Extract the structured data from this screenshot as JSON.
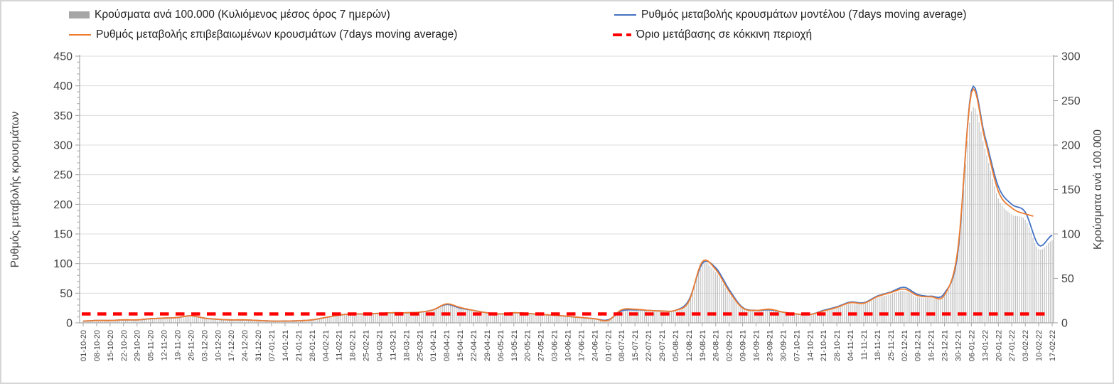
{
  "legend": {
    "items": [
      {
        "id": "cases-bars",
        "label": "Κρούσματα ανά 100.000 (Κυλιόμενος μέσος όρος 7 ημερών)",
        "swatch": "gray-bar",
        "color": "#a6a6a6"
      },
      {
        "id": "model-line",
        "label": "Ρυθμός μεταβολής κρουσμάτων μοντέλου (7days moving average)",
        "swatch": "line",
        "color": "#4472c4"
      },
      {
        "id": "confirmed-line",
        "label": "Ρυθμός μεταβολής επιβεβαιωμένων κρουσμάτων (7days moving average)",
        "swatch": "line",
        "color": "#ed7d31"
      },
      {
        "id": "red-threshold",
        "label": "Όριο μετάβασης σε κόκκινη περιοχή",
        "swatch": "dashed-line",
        "color": "#ff0000"
      }
    ]
  },
  "chart_data": {
    "type": "combo-bar-line-dual-axis",
    "title": "",
    "grid": true,
    "legend_position": "top",
    "left_axis": {
      "title": "Ρυθμός μεταβολής κρουσμάτων",
      "min": 0,
      "max": 450,
      "tick_step": 50,
      "minor_step": 10,
      "ticks": [
        0,
        50,
        100,
        150,
        200,
        250,
        300,
        350,
        400,
        450
      ]
    },
    "right_axis": {
      "title": "Κρούσματα ανά 100.000",
      "min": 0,
      "max": 300,
      "tick_step": 50,
      "ticks": [
        0,
        50,
        100,
        150,
        200,
        250,
        300
      ]
    },
    "categories": [
      "01-10-20",
      "08-10-20",
      "15-10-20",
      "22-10-20",
      "29-10-20",
      "05-11-20",
      "12-11-20",
      "19-11-20",
      "26-11-20",
      "03-12-20",
      "10-12-20",
      "17-12-20",
      "24-12-20",
      "31-12-20",
      "07-01-21",
      "14-01-21",
      "21-01-21",
      "28-01-21",
      "04-02-21",
      "11-02-21",
      "18-02-21",
      "25-02-21",
      "04-03-21",
      "11-03-21",
      "18-03-21",
      "25-03-21",
      "01-04-21",
      "08-04-21",
      "15-04-21",
      "22-04-21",
      "29-04-21",
      "06-05-21",
      "13-05-21",
      "20-05-21",
      "27-05-21",
      "03-06-21",
      "10-06-21",
      "17-06-21",
      "24-06-21",
      "01-07-21",
      "08-07-21",
      "15-07-21",
      "22-07-21",
      "29-07-21",
      "05-08-21",
      "12-08-21",
      "19-08-21",
      "26-08-21",
      "02-09-21",
      "09-09-21",
      "16-09-21",
      "23-09-21",
      "30-09-21",
      "07-10-21",
      "14-10-21",
      "21-10-21",
      "28-10-21",
      "04-11-21",
      "11-11-21",
      "18-11-21",
      "25-11-21",
      "02-12-21",
      "09-12-21",
      "16-12-21",
      "23-12-21",
      "30-12-21",
      "06-01-22",
      "13-01-22",
      "20-01-22",
      "27-01-22",
      "03-02-22",
      "10-02-22",
      "17-02-22"
    ],
    "series": [
      {
        "name": "Κρούσματα ανά 100.000 (Κυλιόμενος μέσος όρος 7 ημερών)",
        "type": "bar",
        "axis": "right",
        "color": "#bebebe",
        "values": [
          2,
          2.5,
          2.5,
          3,
          3,
          4.5,
          5,
          6,
          7.5,
          5,
          4,
          3,
          3,
          2.5,
          2,
          2,
          2.2,
          3,
          5.5,
          8,
          9.5,
          9.5,
          10,
          10.5,
          10.5,
          11,
          14,
          20,
          16.5,
          13,
          10.5,
          9.5,
          10.5,
          10,
          9,
          8,
          7,
          5.5,
          4.5,
          2.5,
          13.5,
          14.5,
          13,
          12.5,
          13,
          23,
          65,
          57,
          33,
          16,
          13,
          14.5,
          11,
          9.5,
          9,
          12.5,
          16.5,
          21.5,
          21,
          28,
          32,
          36,
          29,
          28,
          30,
          79,
          238,
          196,
          140,
          122,
          116,
          83,
          93
        ]
      },
      {
        "name": "Ρυθμός μεταβολής κρουσμάτων μοντέλου (7days moving average)",
        "type": "line",
        "axis": "left",
        "color": "#4472c4",
        "values": [
          3,
          4,
          4,
          5,
          5,
          7,
          8,
          9,
          12,
          8,
          6,
          5,
          5,
          4,
          3,
          3,
          3.5,
          5,
          9,
          13,
          15,
          15,
          16,
          17,
          17,
          18,
          22,
          31,
          25,
          21,
          17,
          15,
          17,
          16,
          14,
          13,
          11,
          9,
          7,
          5,
          20,
          22,
          21,
          20,
          21,
          38,
          100,
          93,
          56,
          26,
          21,
          22,
          18,
          15,
          14,
          21,
          27,
          35,
          34,
          45,
          52,
          60,
          48,
          45,
          50,
          120,
          392,
          315,
          230,
          200,
          187,
          131,
          148
        ]
      },
      {
        "name": "Ρυθμός μεταβολής επιβεβαιωμένων κρουσμάτων (7days moving average)",
        "type": "line",
        "axis": "left",
        "color": "#ed7d31",
        "values": [
          3,
          4,
          4,
          5,
          5,
          7,
          8,
          9,
          12,
          8,
          6,
          5,
          5,
          4,
          3,
          3,
          3.5,
          5,
          9,
          13,
          15,
          15,
          16,
          17,
          17,
          18,
          22,
          32,
          26,
          21,
          17,
          15,
          17,
          16,
          14,
          13,
          11,
          9,
          7,
          4,
          22,
          23,
          21,
          20,
          21,
          36,
          103,
          90,
          53,
          25,
          21,
          23,
          18,
          15,
          14,
          20,
          26,
          34,
          33,
          44,
          51,
          57,
          46,
          44,
          47,
          125,
          388,
          310,
          222,
          194,
          184,
          null,
          null
        ],
        "end_point": {
          "week": 70.6,
          "value": 180
        }
      },
      {
        "name": "Όριο μετάβασης σε κόκκινη περιοχή",
        "type": "dashed-line",
        "axis": "left",
        "color": "#ff0000",
        "value": 15,
        "value_right_axis": 10
      }
    ]
  }
}
